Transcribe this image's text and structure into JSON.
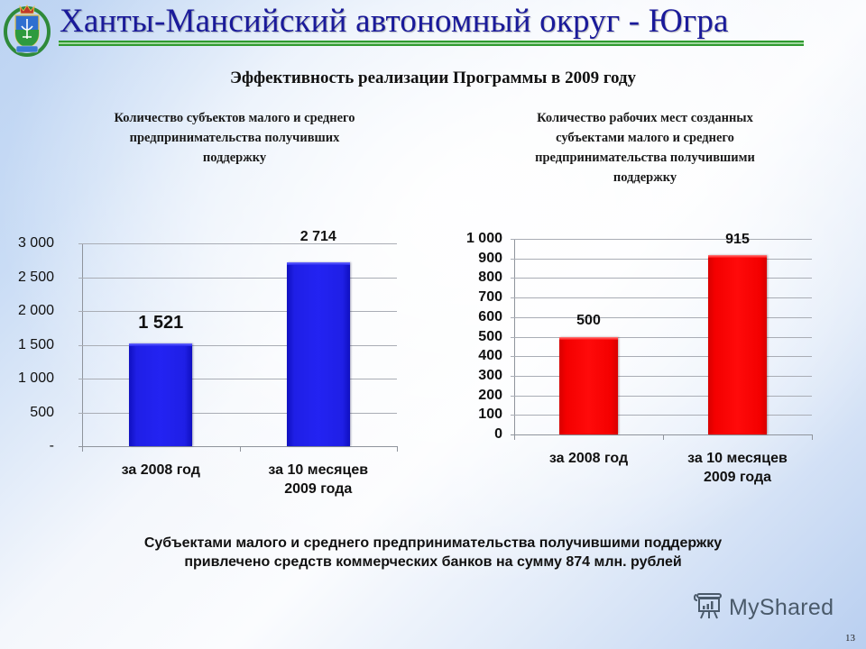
{
  "header": {
    "title": "Ханты-Мансийский автономный округ - Югра",
    "logo_icon": "coat-of-arms-icon"
  },
  "slide": {
    "subtitle": "Эффективность реализации Программы в 2009 году",
    "footer_lines": [
      "Субъектами малого и среднего предпринимательства получившими поддержку",
      "привлечено средств коммерческих банков на сумму 874 млн. рублей"
    ],
    "watermark": "MyShared",
    "watermark_icon": "presentation-board-icon",
    "page_number": "13"
  },
  "colors": {
    "title": "#1a1a9a",
    "rule": "#2f9a2f",
    "left_bars": "#2020f0",
    "right_bars": "#ff0000"
  },
  "chart_data": [
    {
      "type": "bar",
      "title": "Количество субъектов малого и среднего предпринимательства получивших поддержку",
      "title_lines": [
        "Количество субъектов малого и среднего",
        "предпринимательства получивших",
        "поддержку"
      ],
      "categories": [
        "за 2008 год",
        "за 10 месяцев 2009 года"
      ],
      "category_lines": [
        [
          "за 2008 год"
        ],
        [
          "за 10 месяцев",
          "2009 года"
        ]
      ],
      "values": [
        1521,
        2714
      ],
      "value_labels": [
        "1 521",
        "2 714"
      ],
      "xlabel": "",
      "ylabel": "",
      "ylim": [
        0,
        3000
      ],
      "yticks": [
        0,
        500,
        1000,
        1500,
        2000,
        2500,
        3000
      ],
      "ytick_labels": [
        "-",
        "500",
        "1 000",
        "1 500",
        "2 000",
        "2 500",
        "3 000"
      ],
      "grid": true,
      "legend": null,
      "bar_color": "#2020f0"
    },
    {
      "type": "bar",
      "title": "Количество рабочих мест созданных субъектами малого и среднего предпринимательства получившими поддержку",
      "title_lines": [
        "Количество рабочих мест созданных",
        "субъектами малого и среднего",
        "предпринимательства получившими",
        "поддержку"
      ],
      "categories": [
        "за 2008 год",
        "за 10 месяцев 2009 года"
      ],
      "category_lines": [
        [
          "за 2008 год"
        ],
        [
          "за 10 месяцев",
          "2009 года"
        ]
      ],
      "values": [
        500,
        915
      ],
      "value_labels": [
        "500",
        "915"
      ],
      "xlabel": "",
      "ylabel": "",
      "ylim": [
        0,
        1000
      ],
      "yticks": [
        0,
        100,
        200,
        300,
        400,
        500,
        600,
        700,
        800,
        900,
        1000
      ],
      "ytick_labels": [
        "0",
        "100",
        "200",
        "300",
        "400",
        "500",
        "600",
        "700",
        "800",
        "900",
        "1 000"
      ],
      "grid": true,
      "legend": null,
      "bar_color": "#ff0000"
    }
  ]
}
